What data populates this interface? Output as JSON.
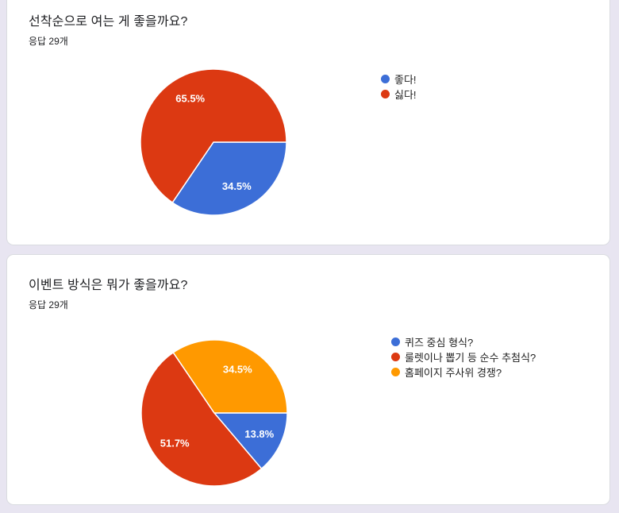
{
  "page": {
    "background_color": "#e8e5f1",
    "card_background": "#ffffff",
    "card_border_color": "#dadce0"
  },
  "chart_data": [
    {
      "type": "pie",
      "title": "선착순으로 여는 게 좋을까요?",
      "subtitle": "응답 29개",
      "responses_count": 29,
      "legend_position": "right",
      "start_angle_deg_from_east": 0,
      "direction": "clockwise",
      "slices": [
        {
          "label": "좋다!",
          "value_percent": 34.5,
          "display": "34.5%",
          "color": "#3c6ed7"
        },
        {
          "label": "싫다!",
          "value_percent": 65.5,
          "display": "65.5%",
          "color": "#dc3912"
        }
      ]
    },
    {
      "type": "pie",
      "title": "이벤트 방식은 뭐가 좋을까요?",
      "subtitle": "응답 29개",
      "responses_count": 29,
      "legend_position": "right",
      "start_angle_deg_from_east": 0,
      "direction": "clockwise",
      "slices": [
        {
          "label": "퀴즈 중심 형식?",
          "value_percent": 13.8,
          "display": "13.8%",
          "color": "#3c6ed7"
        },
        {
          "label": "룰렛이나 뽑기 등 순수 추첨식?",
          "value_percent": 51.7,
          "display": "51.7%",
          "color": "#dc3912"
        },
        {
          "label": "홈페이지 주사위 경쟁?",
          "value_percent": 34.5,
          "display": "34.5%",
          "color": "#ff9900"
        }
      ]
    }
  ]
}
